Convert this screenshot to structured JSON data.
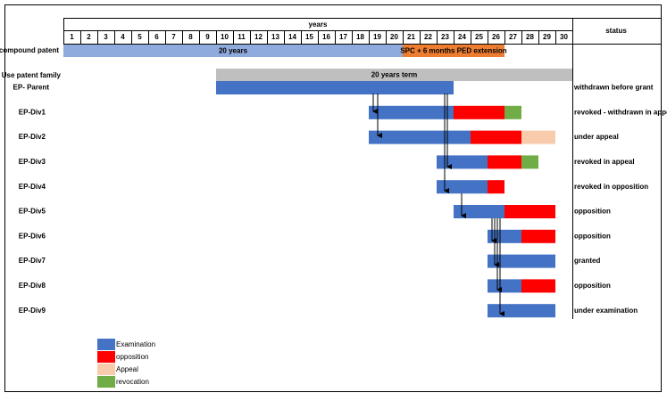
{
  "header": {
    "years_label": "years",
    "status_label": "status",
    "years": [
      1,
      2,
      3,
      4,
      5,
      6,
      7,
      8,
      9,
      10,
      11,
      12,
      13,
      14,
      15,
      16,
      17,
      18,
      19,
      20,
      21,
      22,
      23,
      24,
      25,
      26,
      27,
      28,
      29,
      30
    ]
  },
  "compound_patent": {
    "label": "compound patent",
    "segments": [
      {
        "start": 0,
        "end": 20,
        "label": "20 years",
        "color": "#8faadc"
      },
      {
        "start": 20,
        "end": 26,
        "label": "SPC + 6 months PED extension",
        "color": "#ed7d31"
      }
    ]
  },
  "family": {
    "label": "Use patent family",
    "term": {
      "start": 9,
      "end": 30,
      "label": "20 years term",
      "color": "#bfbfbf"
    }
  },
  "rows": [
    {
      "label": "EP- Parent",
      "status": "withdrawn before grant",
      "segments": [
        {
          "start": 9,
          "end": 23,
          "color": "#4472c4"
        }
      ]
    },
    {
      "label": "EP-Div1",
      "status": "revoked - withdrawn in appeal",
      "segments": [
        {
          "start": 18,
          "end": 23,
          "color": "#4472c4"
        },
        {
          "start": 23,
          "end": 26,
          "color": "#ff0000"
        },
        {
          "start": 26,
          "end": 27,
          "color": "#70ad47"
        }
      ]
    },
    {
      "label": "EP-Div2",
      "status": "under appeal",
      "segments": [
        {
          "start": 18,
          "end": 24,
          "color": "#4472c4"
        },
        {
          "start": 24,
          "end": 27,
          "color": "#ff0000"
        },
        {
          "start": 27,
          "end": 29,
          "color": "#f8cbad"
        }
      ]
    },
    {
      "label": "EP-Div3",
      "status": "revoked in appeal",
      "segments": [
        {
          "start": 22,
          "end": 25,
          "color": "#4472c4"
        },
        {
          "start": 25,
          "end": 27,
          "color": "#ff0000"
        },
        {
          "start": 27,
          "end": 28,
          "color": "#70ad47"
        }
      ]
    },
    {
      "label": "EP-Div4",
      "status": "revoked in opposition",
      "segments": [
        {
          "start": 22,
          "end": 25,
          "color": "#4472c4"
        },
        {
          "start": 25,
          "end": 26,
          "color": "#ff0000"
        }
      ]
    },
    {
      "label": "EP-Div5",
      "status": "opposition",
      "segments": [
        {
          "start": 23,
          "end": 26,
          "color": "#4472c4"
        },
        {
          "start": 26,
          "end": 29,
          "color": "#ff0000"
        }
      ]
    },
    {
      "label": "EP-Div6",
      "status": "opposition",
      "segments": [
        {
          "start": 25,
          "end": 27,
          "color": "#4472c4"
        },
        {
          "start": 27,
          "end": 29,
          "color": "#ff0000"
        }
      ]
    },
    {
      "label": "EP-Div7",
      "status": "granted",
      "segments": [
        {
          "start": 25,
          "end": 29,
          "color": "#4472c4"
        }
      ]
    },
    {
      "label": "EP-Div8",
      "status": "opposition",
      "segments": [
        {
          "start": 25,
          "end": 27,
          "color": "#4472c4"
        },
        {
          "start": 27,
          "end": 29,
          "color": "#ff0000"
        }
      ]
    },
    {
      "label": "EP-Div9",
      "status": "under examination",
      "segments": [
        {
          "start": 25,
          "end": 29,
          "color": "#4472c4"
        }
      ]
    }
  ],
  "legend": [
    {
      "label": "Examination",
      "color": "#4472c4"
    },
    {
      "label": "opposition",
      "color": "#ff0000"
    },
    {
      "label": "Appeal",
      "color": "#f8cbad"
    },
    {
      "label": "revocation",
      "color": "#70ad47"
    }
  ]
}
